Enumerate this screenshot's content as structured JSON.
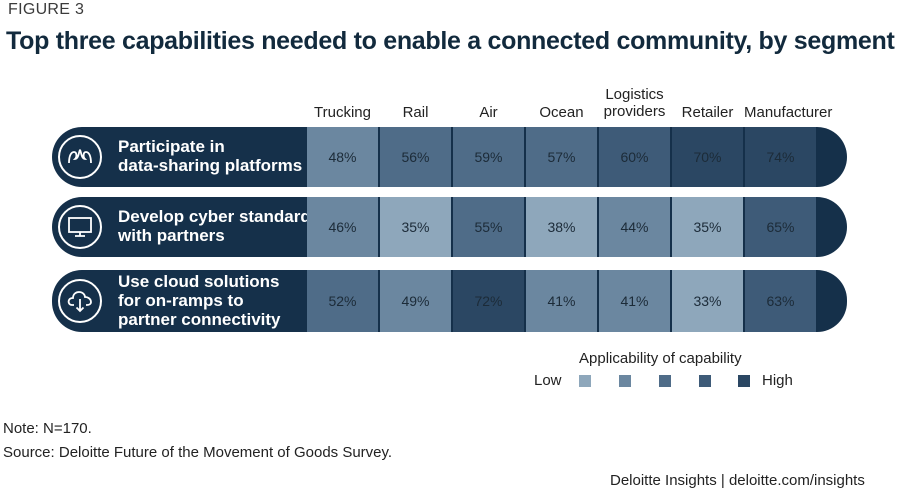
{
  "figure_label": "FIGURE 3",
  "title": "Top three capabilities needed to enable a connected community, by segment",
  "chart_data": {
    "type": "heatmap",
    "title": "Top three capabilities needed to enable a connected community, by segment",
    "columns": [
      "Trucking",
      "Rail",
      "Air",
      "Ocean",
      "Logistics\nproviders",
      "Retailer",
      "Manufacturer"
    ],
    "rows": [
      {
        "label": "Participate in\ndata-sharing platforms",
        "icon": "people-network-icon",
        "values": [
          "48%",
          "56%",
          "59%",
          "57%",
          "60%",
          "70%",
          "74%"
        ]
      },
      {
        "label": "Develop cyber standards\nwith partners",
        "icon": "monitor-icon",
        "values": [
          "46%",
          "35%",
          "55%",
          "38%",
          "44%",
          "35%",
          "65%"
        ]
      },
      {
        "label": "Use cloud solutions\nfor on-ramps to\npartner connectivity",
        "icon": "cloud-download-icon",
        "values": [
          "52%",
          "49%",
          "72%",
          "41%",
          "41%",
          "33%",
          "63%"
        ]
      }
    ],
    "value_unit": "%",
    "legend": {
      "title": "Applicability of capability",
      "low_label": "Low",
      "high_label": "High",
      "scale_colors": [
        "#8ea7bb",
        "#6b87a0",
        "#4f6c88",
        "#3e5b78",
        "#2b4763"
      ]
    }
  },
  "colors": {
    "row_background": "#15304a",
    "title": "#122a3d"
  },
  "note": "Note: N=170.",
  "source": "Source: Deloitte Future of the Movement of Goods Survey.",
  "brand": "Deloitte Insights | deloitte.com/insights"
}
